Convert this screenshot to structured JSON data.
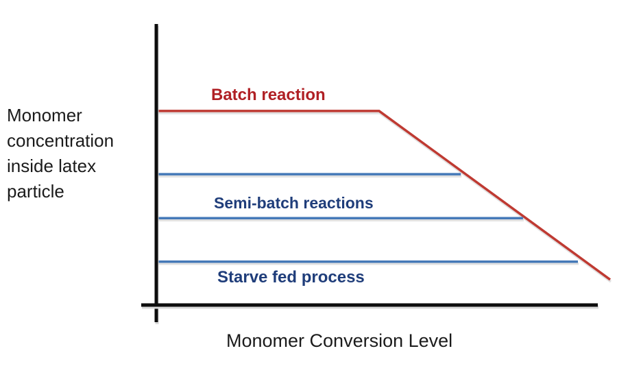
{
  "chart_data": {
    "type": "line",
    "title": "",
    "xlabel": "Monomer Conversion Level",
    "ylabel": "Monomer concentration inside latex particle",
    "x_axis": {
      "range": [
        0,
        1
      ],
      "ticks": "none",
      "grid": false
    },
    "y_axis": {
      "range": [
        0,
        1
      ],
      "ticks": "none",
      "grid": false
    },
    "legend_position": "none",
    "series": [
      {
        "name": "Batch reaction",
        "color": "#bf3a32",
        "points": [
          {
            "x": 0.0,
            "y": 0.689
          },
          {
            "x": 0.491,
            "y": 0.689
          },
          {
            "x": 1.0,
            "y": 0.086
          }
        ]
      },
      {
        "name": "Semi-batch reaction (upper level)",
        "color": "#4579b8",
        "points": [
          {
            "x": 0.0,
            "y": 0.463
          },
          {
            "x": 0.671,
            "y": 0.463
          }
        ]
      },
      {
        "name": "Semi-batch reaction (lower level)",
        "color": "#4579b8",
        "points": [
          {
            "x": 0.0,
            "y": 0.306
          },
          {
            "x": 0.808,
            "y": 0.306
          }
        ]
      },
      {
        "name": "Starve fed process",
        "color": "#4579b8",
        "points": [
          {
            "x": 0.0,
            "y": 0.15
          },
          {
            "x": 0.929,
            "y": 0.15
          }
        ]
      }
    ],
    "annotations": [
      {
        "text": "Batch reaction",
        "color": "#b02025"
      },
      {
        "text": "Semi-batch reactions",
        "color": "#1f3d7a"
      },
      {
        "text": "Starve fed process",
        "color": "#1f3d7a"
      }
    ],
    "axis_color": "#0d0d0d"
  }
}
